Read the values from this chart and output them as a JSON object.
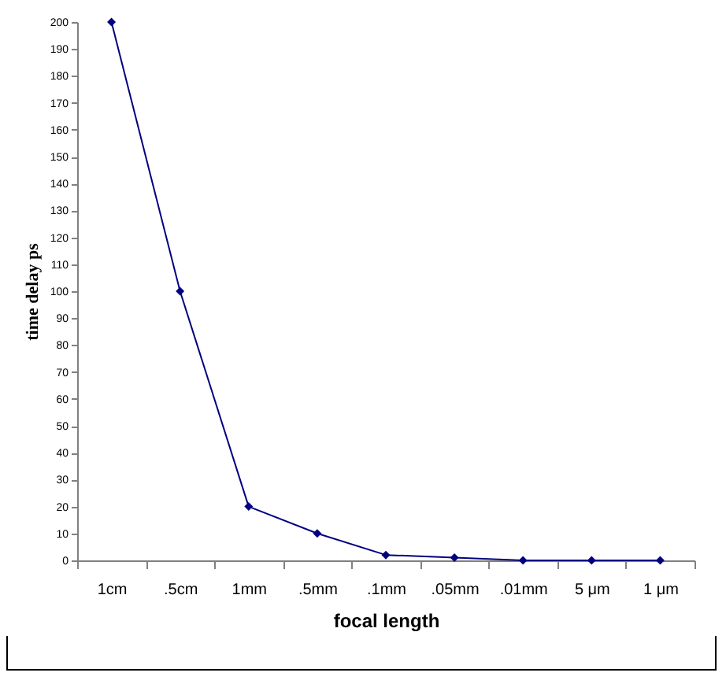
{
  "chart_data": {
    "type": "line",
    "xlabel": "focal length",
    "ylabel": "time delay ps",
    "categories": [
      "1cm",
      ".5cm",
      "1mm",
      ".5mm",
      ".1mm",
      ".05mm",
      ".01mm",
      "5 μm",
      "1 μm"
    ],
    "series": [
      {
        "color": "#000080",
        "values": [
          200,
          100,
          20,
          10,
          2,
          1,
          0,
          0,
          0
        ]
      }
    ],
    "ylim": [
      0,
      200
    ],
    "yticks": [
      0,
      10,
      20,
      30,
      40,
      50,
      60,
      70,
      80,
      90,
      100,
      110,
      120,
      130,
      140,
      150,
      160,
      170,
      180,
      190,
      200
    ],
    "grid": false,
    "legend": false,
    "marker": "diamond",
    "line_style": "solid"
  }
}
